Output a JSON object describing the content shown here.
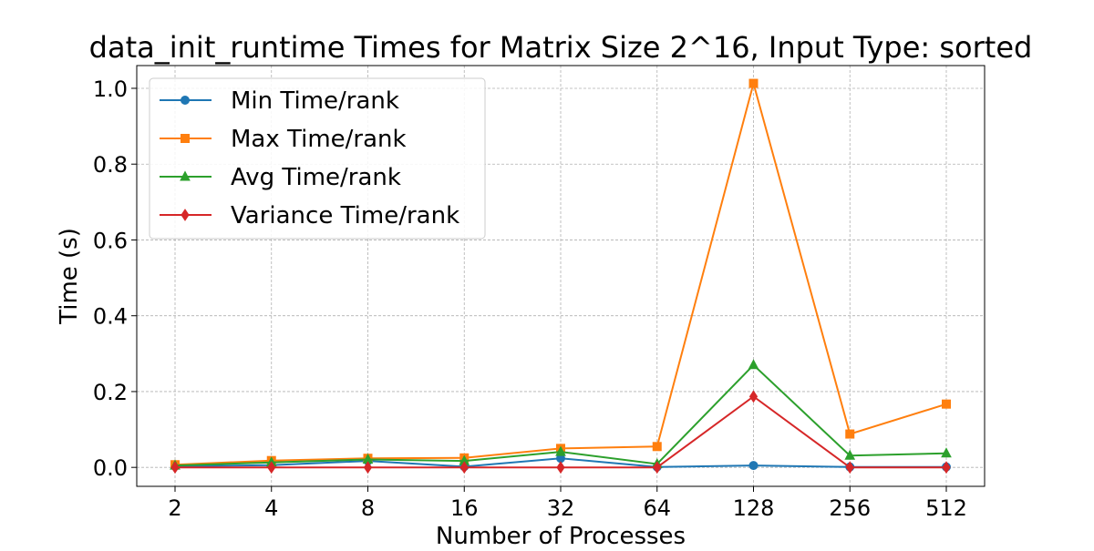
{
  "chart_data": {
    "type": "line",
    "title": "data_init_runtime Times for Matrix Size 2^16, Input Type: sorted",
    "xlabel": "Number of Processes",
    "ylabel": "Time (s)",
    "categories": [
      "2",
      "4",
      "8",
      "16",
      "32",
      "64",
      "128",
      "256",
      "512"
    ],
    "y_ticks": [
      "0.0",
      "0.2",
      "0.4",
      "0.6",
      "0.8",
      "1.0"
    ],
    "ylim": [
      -0.05,
      1.06
    ],
    "grid": true,
    "legend_position": "top-left",
    "series": [
      {
        "name": "Min Time/rank",
        "color": "#1f77b4",
        "marker": "circle",
        "values": [
          0.003,
          0.006,
          0.017,
          0.002,
          0.024,
          0.001,
          0.005,
          0.001,
          0.001
        ]
      },
      {
        "name": "Max Time/rank",
        "color": "#ff7f0e",
        "marker": "square",
        "values": [
          0.007,
          0.018,
          0.024,
          0.025,
          0.05,
          0.055,
          1.013,
          0.088,
          0.167
        ]
      },
      {
        "name": "Avg Time/rank",
        "color": "#2ca02c",
        "marker": "triangle",
        "values": [
          0.005,
          0.013,
          0.021,
          0.017,
          0.041,
          0.009,
          0.27,
          0.031,
          0.037
        ]
      },
      {
        "name": "Variance Time/rank",
        "color": "#d62728",
        "marker": "diamond",
        "values": [
          0.0,
          0.0,
          0.0,
          0.0,
          0.0,
          0.0,
          0.187,
          0.0,
          0.0
        ]
      }
    ]
  }
}
